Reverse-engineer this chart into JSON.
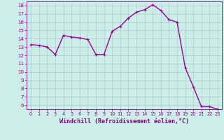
{
  "x": [
    0,
    1,
    2,
    3,
    4,
    5,
    6,
    7,
    8,
    9,
    10,
    11,
    12,
    13,
    14,
    15,
    16,
    17,
    18,
    19,
    20,
    21,
    22,
    23
  ],
  "y": [
    13.3,
    13.2,
    13.0,
    12.1,
    14.4,
    14.2,
    14.1,
    13.9,
    12.1,
    12.1,
    14.9,
    15.5,
    16.5,
    17.2,
    17.5,
    18.1,
    17.4,
    16.3,
    16.0,
    10.5,
    8.2,
    5.8,
    5.8,
    5.5
  ],
  "line_color": "#990099",
  "marker": "+",
  "marker_size": 3.5,
  "bg_color": "#cceee8",
  "grid_color": "#aacccc",
  "xlabel": "Windchill (Refroidissement éolien,°C)",
  "xlim": [
    -0.5,
    23.5
  ],
  "ylim": [
    5.5,
    18.5
  ],
  "yticks": [
    6,
    7,
    8,
    9,
    10,
    11,
    12,
    13,
    14,
    15,
    16,
    17,
    18
  ],
  "xticks": [
    0,
    1,
    2,
    3,
    4,
    5,
    6,
    7,
    8,
    9,
    10,
    11,
    12,
    13,
    14,
    15,
    16,
    17,
    18,
    19,
    20,
    21,
    22,
    23
  ],
  "line_width": 1.0,
  "xlabel_color": "#880088",
  "tick_color": "#880088",
  "axis_color": "#880088"
}
